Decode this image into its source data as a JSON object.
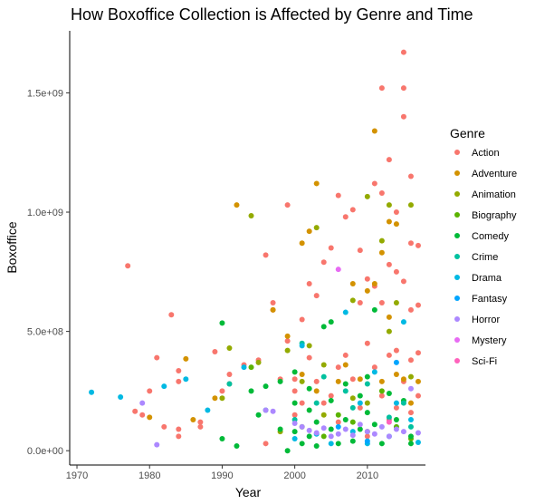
{
  "chart_data": {
    "type": "scatter",
    "title": "How Boxoffice Collection is Affected by Genre and Time",
    "xlabel": "Year",
    "ylabel": "Boxoffice",
    "xlim": [
      1969,
      2018
    ],
    "ylim": [
      -60000000,
      1760000000
    ],
    "x_ticks": [
      1970,
      1980,
      1990,
      2000,
      2010
    ],
    "y_ticks": [
      0,
      500000000,
      1000000000,
      1500000000
    ],
    "y_tick_labels": [
      "0.0e+00",
      "5.0e+08",
      "1.0e+09",
      "1.5e+09"
    ],
    "grid": false,
    "legend": {
      "title": "Genre",
      "position": "right"
    },
    "series": [
      {
        "name": "Action",
        "color": "#F8766D",
        "points": [
          [
            1977,
            775000000
          ],
          [
            1978,
            165000000
          ],
          [
            1979,
            150000000
          ],
          [
            1980,
            250000000
          ],
          [
            1981,
            390000000
          ],
          [
            1982,
            100000000
          ],
          [
            1983,
            570000000
          ],
          [
            1984,
            290000000
          ],
          [
            1984,
            335000000
          ],
          [
            1984,
            90000000
          ],
          [
            1984,
            60000000
          ],
          [
            1987,
            120000000
          ],
          [
            1987,
            100000000
          ],
          [
            1989,
            415000000
          ],
          [
            1990,
            250000000
          ],
          [
            1991,
            320000000
          ],
          [
            1991,
            280000000
          ],
          [
            1993,
            360000000
          ],
          [
            1995,
            380000000
          ],
          [
            1996,
            820000000
          ],
          [
            1996,
            30000000
          ],
          [
            1997,
            620000000
          ],
          [
            1997,
            590000000
          ],
          [
            1998,
            300000000
          ],
          [
            1999,
            1030000000
          ],
          [
            1999,
            460000000
          ],
          [
            2000,
            300000000
          ],
          [
            2000,
            250000000
          ],
          [
            2000,
            150000000
          ],
          [
            2001,
            550000000
          ],
          [
            2001,
            200000000
          ],
          [
            2002,
            700000000
          ],
          [
            2002,
            390000000
          ],
          [
            2003,
            650000000
          ],
          [
            2003,
            290000000
          ],
          [
            2004,
            790000000
          ],
          [
            2004,
            200000000
          ],
          [
            2005,
            850000000
          ],
          [
            2005,
            230000000
          ],
          [
            2006,
            1070000000
          ],
          [
            2006,
            350000000
          ],
          [
            2006,
            120000000
          ],
          [
            2007,
            980000000
          ],
          [
            2007,
            400000000
          ],
          [
            2008,
            1010000000
          ],
          [
            2008,
            300000000
          ],
          [
            2009,
            840000000
          ],
          [
            2009,
            620000000
          ],
          [
            2009,
            180000000
          ],
          [
            2010,
            720000000
          ],
          [
            2010,
            450000000
          ],
          [
            2010,
            60000000
          ],
          [
            2011,
            1120000000
          ],
          [
            2011,
            690000000
          ],
          [
            2011,
            350000000
          ],
          [
            2012,
            1520000000
          ],
          [
            2012,
            1080000000
          ],
          [
            2012,
            620000000
          ],
          [
            2012,
            230000000
          ],
          [
            2013,
            1220000000
          ],
          [
            2013,
            780000000
          ],
          [
            2013,
            400000000
          ],
          [
            2013,
            130000000
          ],
          [
            2014,
            1000000000
          ],
          [
            2014,
            750000000
          ],
          [
            2014,
            420000000
          ],
          [
            2014,
            180000000
          ],
          [
            2015,
            1670000000
          ],
          [
            2015,
            1520000000
          ],
          [
            2015,
            1400000000
          ],
          [
            2015,
            710000000
          ],
          [
            2015,
            290000000
          ],
          [
            2016,
            1150000000
          ],
          [
            2016,
            870000000
          ],
          [
            2016,
            590000000
          ],
          [
            2016,
            380000000
          ],
          [
            2016,
            160000000
          ],
          [
            2017,
            860000000
          ],
          [
            2017,
            610000000
          ],
          [
            2017,
            410000000
          ],
          [
            2017,
            230000000
          ]
        ]
      },
      {
        "name": "Adventure",
        "color": "#D39200",
        "points": [
          [
            1980,
            140000000
          ],
          [
            1985,
            385000000
          ],
          [
            1986,
            130000000
          ],
          [
            1989,
            220000000
          ],
          [
            1992,
            1030000000
          ],
          [
            1997,
            590000000
          ],
          [
            1999,
            480000000
          ],
          [
            2001,
            870000000
          ],
          [
            2001,
            320000000
          ],
          [
            2002,
            920000000
          ],
          [
            2003,
            1120000000
          ],
          [
            2003,
            250000000
          ],
          [
            2006,
            290000000
          ],
          [
            2007,
            360000000
          ],
          [
            2008,
            700000000
          ],
          [
            2009,
            300000000
          ],
          [
            2010,
            670000000
          ],
          [
            2011,
            1340000000
          ],
          [
            2011,
            700000000
          ],
          [
            2012,
            830000000
          ],
          [
            2012,
            290000000
          ],
          [
            2013,
            960000000
          ],
          [
            2013,
            560000000
          ],
          [
            2014,
            950000000
          ],
          [
            2014,
            320000000
          ],
          [
            2015,
            300000000
          ],
          [
            2016,
            200000000
          ],
          [
            2017,
            290000000
          ]
        ]
      },
      {
        "name": "Animation",
        "color": "#93AA00",
        "points": [
          [
            1990,
            220000000
          ],
          [
            1991,
            430000000
          ],
          [
            1994,
            985000000
          ],
          [
            1995,
            370000000
          ],
          [
            1998,
            80000000
          ],
          [
            1999,
            420000000
          ],
          [
            2001,
            290000000
          ],
          [
            2002,
            440000000
          ],
          [
            2003,
            935000000
          ],
          [
            2004,
            360000000
          ],
          [
            2004,
            150000000
          ],
          [
            2008,
            630000000
          ],
          [
            2008,
            220000000
          ],
          [
            2010,
            1065000000
          ],
          [
            2010,
            200000000
          ],
          [
            2012,
            880000000
          ],
          [
            2013,
            1030000000
          ],
          [
            2013,
            500000000
          ],
          [
            2014,
            620000000
          ],
          [
            2016,
            1030000000
          ],
          [
            2016,
            310000000
          ]
        ]
      },
      {
        "name": "Biography",
        "color": "#5BB300",
        "points": [
          [
            1994,
            350000000
          ],
          [
            2001,
            100000000
          ],
          [
            2004,
            60000000
          ],
          [
            2006,
            150000000
          ],
          [
            2008,
            120000000
          ],
          [
            2010,
            80000000
          ],
          [
            2012,
            250000000
          ],
          [
            2014,
            100000000
          ],
          [
            2016,
            50000000
          ]
        ]
      },
      {
        "name": "Comedy",
        "color": "#00BA38",
        "points": [
          [
            1990,
            535000000
          ],
          [
            1990,
            50000000
          ],
          [
            1992,
            20000000
          ],
          [
            1994,
            250000000
          ],
          [
            1995,
            150000000
          ],
          [
            1996,
            270000000
          ],
          [
            1998,
            290000000
          ],
          [
            1998,
            90000000
          ],
          [
            1999,
            0
          ],
          [
            2000,
            330000000
          ],
          [
            2000,
            200000000
          ],
          [
            2000,
            80000000
          ],
          [
            2001,
            30000000
          ],
          [
            2002,
            260000000
          ],
          [
            2002,
            170000000
          ],
          [
            2002,
            60000000
          ],
          [
            2003,
            120000000
          ],
          [
            2003,
            20000000
          ],
          [
            2004,
            520000000
          ],
          [
            2005,
            540000000
          ],
          [
            2005,
            210000000
          ],
          [
            2005,
            90000000
          ],
          [
            2006,
            30000000
          ],
          [
            2007,
            280000000
          ],
          [
            2007,
            130000000
          ],
          [
            2008,
            40000000
          ],
          [
            2009,
            230000000
          ],
          [
            2009,
            90000000
          ],
          [
            2010,
            310000000
          ],
          [
            2010,
            160000000
          ],
          [
            2011,
            590000000
          ],
          [
            2011,
            110000000
          ],
          [
            2012,
            30000000
          ],
          [
            2013,
            240000000
          ],
          [
            2014,
            130000000
          ],
          [
            2015,
            210000000
          ],
          [
            2016,
            60000000
          ],
          [
            2016,
            30000000
          ]
        ]
      },
      {
        "name": "Crime",
        "color": "#00C19F",
        "points": [
          [
            1991,
            280000000
          ],
          [
            1996,
            170000000
          ],
          [
            2000,
            130000000
          ],
          [
            2001,
            450000000
          ],
          [
            2003,
            200000000
          ],
          [
            2004,
            310000000
          ],
          [
            2007,
            250000000
          ],
          [
            2008,
            180000000
          ],
          [
            2010,
            280000000
          ],
          [
            2013,
            140000000
          ],
          [
            2015,
            200000000
          ],
          [
            2016,
            100000000
          ]
        ]
      },
      {
        "name": "Drama",
        "color": "#00B9E3",
        "points": [
          [
            1972,
            245000000
          ],
          [
            1976,
            225000000
          ],
          [
            1982,
            270000000
          ],
          [
            1985,
            300000000
          ],
          [
            1988,
            170000000
          ],
          [
            1993,
            350000000
          ],
          [
            2000,
            50000000
          ],
          [
            2001,
            440000000
          ],
          [
            2003,
            70000000
          ],
          [
            2005,
            30000000
          ],
          [
            2007,
            580000000
          ],
          [
            2008,
            80000000
          ],
          [
            2009,
            200000000
          ],
          [
            2010,
            30000000
          ],
          [
            2011,
            330000000
          ],
          [
            2013,
            60000000
          ],
          [
            2014,
            200000000
          ],
          [
            2015,
            540000000
          ],
          [
            2016,
            130000000
          ],
          [
            2017,
            35000000
          ]
        ]
      },
      {
        "name": "Fantasy",
        "color": "#00A5FF",
        "points": [
          [
            2006,
            100000000
          ],
          [
            2010,
            40000000
          ],
          [
            2014,
            370000000
          ]
        ]
      },
      {
        "name": "Horror",
        "color": "#AC88FF",
        "points": [
          [
            1979,
            200000000
          ],
          [
            1981,
            25000000
          ],
          [
            1996,
            170000000
          ],
          [
            1997,
            165000000
          ],
          [
            2000,
            115000000
          ],
          [
            2001,
            100000000
          ],
          [
            2002,
            85000000
          ],
          [
            2003,
            75000000
          ],
          [
            2004,
            95000000
          ],
          [
            2005,
            60000000
          ],
          [
            2006,
            70000000
          ],
          [
            2007,
            90000000
          ],
          [
            2008,
            65000000
          ],
          [
            2009,
            110000000
          ],
          [
            2010,
            80000000
          ],
          [
            2011,
            70000000
          ],
          [
            2012,
            100000000
          ],
          [
            2013,
            60000000
          ],
          [
            2014,
            90000000
          ],
          [
            2015,
            80000000
          ],
          [
            2016,
            260000000
          ],
          [
            2017,
            75000000
          ]
        ]
      },
      {
        "name": "Mystery",
        "color": "#E76BF3",
        "points": [
          [
            2006,
            760000000
          ]
        ]
      },
      {
        "name": "Sci-Fi",
        "color": "#FF62BC",
        "points": [
          [
            2013,
            120000000
          ]
        ]
      }
    ]
  }
}
